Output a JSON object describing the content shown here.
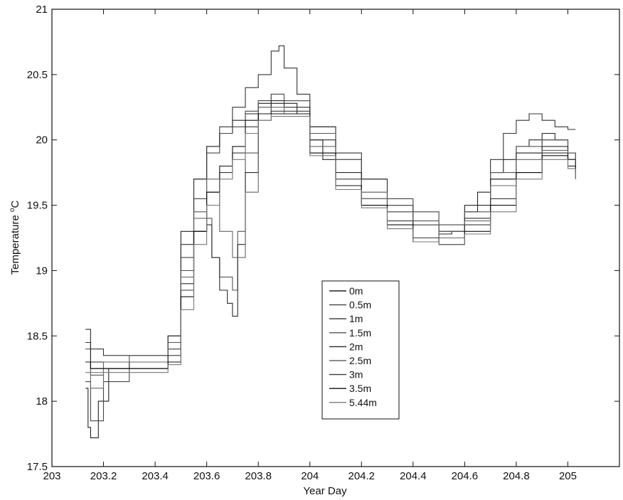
{
  "chart_data": {
    "type": "line",
    "title": "",
    "xlabel": "Year Day",
    "ylabel_main": "Temperature ",
    "ylabel_sup": "o",
    "ylabel_unit": "C",
    "xlim": [
      203,
      205.2
    ],
    "ylim": [
      17.5,
      21
    ],
    "xticks": [
      203,
      203.2,
      203.4,
      203.6,
      203.8,
      204,
      204.2,
      204.4,
      204.6,
      204.8,
      205
    ],
    "xtick_labels": [
      "203",
      "203.2",
      "203.4",
      "203.6",
      "203.8",
      "204",
      "204.2",
      "204.4",
      "204.6",
      "204.8",
      "205"
    ],
    "yticks": [
      17.5,
      18,
      18.5,
      19,
      19.5,
      20,
      20.5,
      21
    ],
    "ytick_labels": [
      "17.5",
      "18",
      "18.5",
      "19",
      "19.5",
      "20",
      "20.5",
      "21"
    ],
    "grid": false,
    "legend_position": "lower-center",
    "series": [
      {
        "name": "0m",
        "color": "#222222",
        "x": [
          203.13,
          203.14,
          203.15,
          203.18,
          203.22,
          203.3,
          203.4,
          203.45,
          203.5,
          203.55,
          203.6,
          203.65,
          203.7,
          203.75,
          203.8,
          203.85,
          203.9,
          203.95,
          204.0,
          204.05,
          204.1,
          204.2,
          204.3,
          204.4,
          204.5,
          204.55,
          204.6,
          204.65,
          204.7,
          204.75,
          204.8,
          204.85,
          204.9,
          204.95,
          205.0,
          205.03
        ],
        "y": [
          18.1,
          17.8,
          17.72,
          18.0,
          18.25,
          18.3,
          18.3,
          18.5,
          19.3,
          19.7,
          19.95,
          20.05,
          20.15,
          20.2,
          20.28,
          20.28,
          20.28,
          20.2,
          20.0,
          19.85,
          19.7,
          19.55,
          19.5,
          19.35,
          19.28,
          19.3,
          19.45,
          19.6,
          19.75,
          19.85,
          19.95,
          20.0,
          20.05,
          20.0,
          19.85,
          19.8
        ]
      },
      {
        "name": "0.5m",
        "color": "#444444",
        "x": [
          203.13,
          203.15,
          203.2,
          203.3,
          203.4,
          203.45,
          203.5,
          203.55,
          203.6,
          203.65,
          203.7,
          203.75,
          203.8,
          203.85,
          203.9,
          204.0,
          204.1,
          204.2,
          204.3,
          204.4,
          204.5,
          204.6,
          204.7,
          204.8,
          204.9,
          205.0,
          205.03
        ],
        "y": [
          18.15,
          17.85,
          18.15,
          18.3,
          18.3,
          18.45,
          19.1,
          19.55,
          19.9,
          20.05,
          20.1,
          20.22,
          20.3,
          20.35,
          20.3,
          20.1,
          19.85,
          19.7,
          19.55,
          19.45,
          19.35,
          19.5,
          19.7,
          19.9,
          20.0,
          19.9,
          19.85
        ]
      },
      {
        "name": "1m",
        "color": "#333333",
        "x": [
          203.13,
          203.15,
          203.2,
          203.3,
          203.4,
          203.45,
          203.5,
          203.55,
          203.6,
          203.65,
          203.7,
          203.75,
          203.8,
          203.85,
          203.88,
          203.9,
          203.95,
          204.0,
          204.1,
          204.2,
          204.3,
          204.4,
          204.5,
          204.6,
          204.7,
          204.75,
          204.8,
          204.85,
          204.9,
          204.95,
          205.0,
          205.03
        ],
        "y": [
          18.45,
          18.4,
          18.35,
          18.35,
          18.35,
          18.5,
          19.2,
          19.7,
          19.95,
          20.1,
          20.25,
          20.4,
          20.5,
          20.68,
          20.72,
          20.55,
          20.35,
          20.1,
          19.9,
          19.7,
          19.5,
          19.35,
          19.3,
          19.5,
          19.85,
          20.05,
          20.15,
          20.2,
          20.15,
          20.1,
          20.08,
          20.08
        ]
      },
      {
        "name": "1.5m",
        "color": "#555555",
        "x": [
          203.13,
          203.15,
          203.2,
          203.3,
          203.4,
          203.45,
          203.5,
          203.55,
          203.6,
          203.62,
          203.65,
          203.7,
          203.72,
          203.75,
          203.8,
          203.85,
          203.9,
          204.0,
          204.1,
          204.2,
          204.3,
          204.4,
          204.5,
          204.6,
          204.7,
          204.8,
          204.9,
          205.0,
          205.03
        ],
        "y": [
          18.4,
          18.2,
          18.3,
          18.35,
          18.35,
          18.45,
          19.0,
          19.45,
          19.4,
          19.1,
          18.95,
          18.85,
          19.3,
          19.9,
          20.25,
          20.35,
          20.3,
          20.05,
          19.85,
          19.6,
          19.5,
          19.38,
          19.3,
          19.45,
          19.75,
          19.95,
          20.0,
          19.9,
          19.85
        ]
      },
      {
        "name": "2m",
        "color": "#2a2a2a",
        "x": [
          203.13,
          203.15,
          203.2,
          203.3,
          203.4,
          203.45,
          203.5,
          203.55,
          203.6,
          203.62,
          203.65,
          203.68,
          203.7,
          203.72,
          203.75,
          203.8,
          203.85,
          203.9,
          204.0,
          204.1,
          204.2,
          204.3,
          204.4,
          204.5,
          204.6,
          204.7,
          204.8,
          204.9,
          205.0,
          205.03
        ],
        "y": [
          18.55,
          18.3,
          18.3,
          18.3,
          18.3,
          18.4,
          18.9,
          19.3,
          19.35,
          19.1,
          18.85,
          18.75,
          18.65,
          19.2,
          19.75,
          20.2,
          20.3,
          20.25,
          20.0,
          19.75,
          19.55,
          19.45,
          19.35,
          19.25,
          19.4,
          19.7,
          19.9,
          19.95,
          19.85,
          19.8
        ]
      },
      {
        "name": "2.5m",
        "color": "#666666",
        "x": [
          203.13,
          203.15,
          203.2,
          203.3,
          203.4,
          203.45,
          203.5,
          203.55,
          203.6,
          203.65,
          203.7,
          203.75,
          203.8,
          203.85,
          203.9,
          204.0,
          204.1,
          204.2,
          204.3,
          204.4,
          204.5,
          204.6,
          204.7,
          204.8,
          204.9,
          205.0,
          205.03
        ],
        "y": [
          18.3,
          18.1,
          18.3,
          18.3,
          18.3,
          18.4,
          18.95,
          19.4,
          19.7,
          19.3,
          19.1,
          19.6,
          20.15,
          20.25,
          20.2,
          19.95,
          19.7,
          19.55,
          19.45,
          19.35,
          19.25,
          19.38,
          19.65,
          19.85,
          19.92,
          19.85,
          19.8
        ]
      },
      {
        "name": "3m",
        "color": "#3a3a3a",
        "x": [
          203.13,
          203.15,
          203.2,
          203.3,
          203.4,
          203.45,
          203.5,
          203.55,
          203.6,
          203.65,
          203.7,
          203.75,
          203.8,
          203.85,
          203.9,
          204.0,
          204.1,
          204.2,
          204.3,
          204.4,
          204.5,
          204.6,
          204.7,
          204.8,
          204.9,
          205.0,
          205.03
        ],
        "y": [
          18.3,
          18.25,
          18.25,
          18.25,
          18.25,
          18.35,
          18.85,
          19.3,
          19.6,
          19.75,
          19.9,
          20.1,
          20.2,
          20.22,
          20.22,
          19.9,
          19.65,
          19.5,
          19.38,
          19.25,
          19.2,
          19.35,
          19.55,
          19.75,
          19.9,
          19.85,
          19.75
        ]
      },
      {
        "name": "3.5m",
        "color": "#111111",
        "x": [
          203.13,
          203.15,
          203.2,
          203.3,
          203.4,
          203.45,
          203.5,
          203.55,
          203.6,
          203.65,
          203.7,
          203.75,
          203.8,
          203.85,
          203.9,
          204.0,
          204.1,
          204.2,
          204.3,
          204.4,
          204.5,
          204.6,
          204.7,
          204.8,
          204.9,
          205.0,
          205.03
        ],
        "y": [
          18.3,
          18.25,
          18.25,
          18.25,
          18.25,
          18.3,
          18.8,
          19.3,
          19.6,
          19.8,
          19.95,
          20.15,
          20.2,
          20.2,
          20.2,
          19.9,
          19.65,
          19.5,
          19.35,
          19.22,
          19.2,
          19.3,
          19.5,
          19.75,
          19.88,
          19.8,
          19.7
        ]
      },
      {
        "name": "5.44m",
        "color": "#777777",
        "x": [
          203.13,
          203.15,
          203.2,
          203.3,
          203.4,
          203.45,
          203.5,
          203.55,
          203.6,
          203.65,
          203.7,
          203.75,
          203.8,
          203.85,
          203.9,
          204.0,
          204.1,
          204.2,
          204.3,
          204.4,
          204.5,
          204.6,
          204.7,
          204.8,
          204.9,
          205.0,
          205.03
        ],
        "y": [
          18.22,
          18.22,
          18.22,
          18.22,
          18.22,
          18.28,
          18.7,
          19.2,
          19.5,
          19.7,
          19.85,
          20.05,
          20.15,
          20.18,
          20.18,
          19.88,
          19.62,
          19.48,
          19.32,
          19.22,
          19.2,
          19.28,
          19.45,
          19.7,
          19.85,
          19.78,
          19.7
        ]
      }
    ]
  }
}
